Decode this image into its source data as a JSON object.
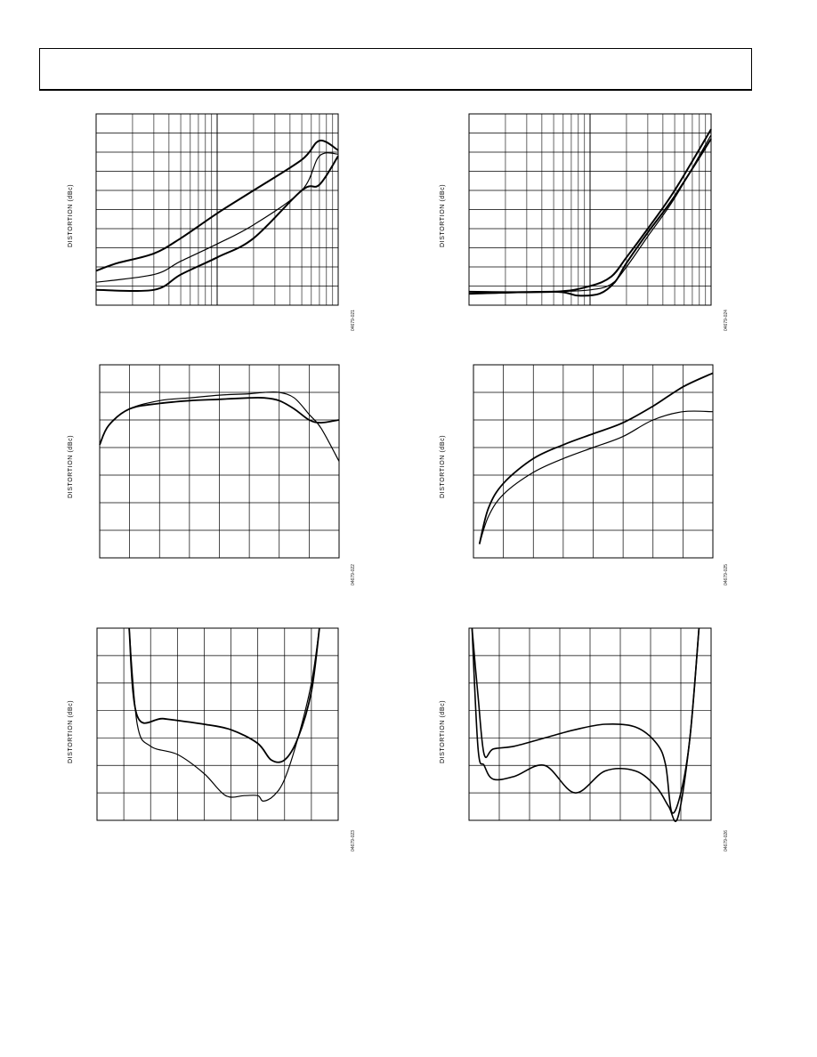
{
  "header": {
    "title": ""
  },
  "figures": [
    {
      "id": "c1",
      "ylabel": "DISTORTION (dBc)",
      "fignum": "04679-021"
    },
    {
      "id": "c2",
      "ylabel": "DISTORTION (dBc)",
      "fignum": "04679-024"
    },
    {
      "id": "c3",
      "ylabel": "DISTORTION (dBc)",
      "fignum": "04679-022"
    },
    {
      "id": "c4",
      "ylabel": "DISTORTION (dBc)",
      "fignum": "04679-025"
    },
    {
      "id": "c5",
      "ylabel": "DISTORTION (dBc)",
      "fignum": "04679-023"
    },
    {
      "id": "c6",
      "ylabel": "DISTORTION (dBc)",
      "fignum": "04679-026"
    }
  ],
  "chart_data": [
    {
      "id": "c1",
      "type": "line",
      "xscale": "log",
      "ylabel": "DISTORTION (dBc)",
      "xlim": [
        1,
        100
      ],
      "ylim": [
        0,
        10
      ],
      "grid": true,
      "series": [
        {
          "x": [
            1,
            1.5,
            3,
            5,
            10,
            20,
            50,
            70,
            100
          ],
          "y": [
            1.8,
            2.2,
            2.7,
            3.5,
            4.8,
            6.0,
            7.6,
            8.6,
            8.1
          ]
        },
        {
          "x": [
            1,
            3,
            5,
            10,
            20,
            50,
            70,
            100
          ],
          "y": [
            1.2,
            1.6,
            2.3,
            3.2,
            4.2,
            6.0,
            7.8,
            7.9
          ]
        },
        {
          "x": [
            1,
            3,
            5,
            10,
            20,
            50,
            70,
            100
          ],
          "y": [
            0.8,
            0.8,
            1.6,
            2.5,
            3.5,
            6.0,
            6.3,
            7.8
          ]
        }
      ]
    },
    {
      "id": "c2",
      "type": "line",
      "xscale": "log",
      "ylabel": "DISTORTION (dBc)",
      "xlim": [
        1,
        100
      ],
      "ylim": [
        0,
        10
      ],
      "grid": true,
      "series": [
        {
          "x": [
            1,
            5,
            10,
            15,
            20,
            30,
            50,
            100
          ],
          "y": [
            0.7,
            0.7,
            1.0,
            1.5,
            2.5,
            4.0,
            6.0,
            9.2
          ]
        },
        {
          "x": [
            1,
            5,
            10,
            15,
            20,
            30,
            50,
            100
          ],
          "y": [
            0.6,
            0.7,
            0.8,
            1.1,
            2.0,
            3.6,
            5.6,
            8.9
          ]
        },
        {
          "x": [
            1,
            5,
            8,
            12,
            16,
            20,
            30,
            50,
            100
          ],
          "y": [
            0.6,
            0.7,
            0.5,
            0.6,
            1.2,
            2.2,
            3.8,
            5.7,
            8.7
          ]
        }
      ]
    },
    {
      "id": "c3",
      "type": "line",
      "ylabel": "DISTORTION (dBc)",
      "xlim": [
        0,
        8
      ],
      "ylim": [
        0,
        7
      ],
      "grid": true,
      "series": [
        {
          "x": [
            0,
            0.3,
            1,
            2,
            3,
            4,
            5,
            5.5,
            6,
            6.5,
            7,
            7.4,
            8
          ],
          "y": [
            4.1,
            4.8,
            5.4,
            5.7,
            5.8,
            5.9,
            5.95,
            6.0,
            6.0,
            5.8,
            5.2,
            4.7,
            3.5
          ]
        },
        {
          "x": [
            0,
            0.3,
            1,
            2,
            3,
            4,
            5,
            5.5,
            6,
            6.5,
            7,
            7.4,
            8
          ],
          "y": [
            4.1,
            4.8,
            5.4,
            5.6,
            5.7,
            5.75,
            5.8,
            5.8,
            5.7,
            5.4,
            5.0,
            4.9,
            5.0
          ]
        }
      ]
    },
    {
      "id": "c4",
      "type": "line",
      "ylabel": "DISTORTION (dBc)",
      "xlim": [
        0,
        8
      ],
      "ylim": [
        0,
        7
      ],
      "grid": true,
      "series": [
        {
          "x": [
            0.2,
            0.5,
            1,
            2,
            3,
            4,
            5,
            6,
            7,
            8
          ],
          "y": [
            0.5,
            1.8,
            2.7,
            3.6,
            4.1,
            4.5,
            4.9,
            5.5,
            6.2,
            6.7
          ]
        },
        {
          "x": [
            0.2,
            0.5,
            1,
            2,
            3,
            4,
            5,
            6,
            7,
            8
          ],
          "y": [
            0.5,
            1.5,
            2.3,
            3.1,
            3.6,
            4.0,
            4.4,
            5.0,
            5.3,
            5.3
          ]
        }
      ]
    },
    {
      "id": "c5",
      "type": "line",
      "ylabel": "DISTORTION (dBc)",
      "xlim": [
        0,
        9
      ],
      "ylim": [
        0,
        7
      ],
      "grid": true,
      "series": [
        {
          "x": [
            1.2,
            1.5,
            2.5,
            4,
            5,
            6,
            6.5,
            7,
            7.5,
            8,
            8.3
          ],
          "y": [
            7.0,
            3.8,
            3.7,
            3.5,
            3.3,
            2.8,
            2.2,
            2.2,
            3.0,
            4.7,
            7.0
          ]
        },
        {
          "x": [
            1.2,
            1.5,
            2,
            3,
            4,
            4.8,
            5.5,
            6,
            6.2,
            6.6,
            7,
            7.5,
            8,
            8.3
          ],
          "y": [
            7.0,
            3.5,
            2.7,
            2.4,
            1.7,
            0.9,
            0.9,
            0.9,
            0.7,
            0.9,
            1.5,
            3.0,
            5.0,
            7.0
          ]
        }
      ]
    },
    {
      "id": "c6",
      "type": "line",
      "ylabel": "DISTORTION (dBc)",
      "xlim": [
        0,
        8
      ],
      "ylim": [
        0,
        7
      ],
      "grid": true,
      "series": [
        {
          "x": [
            0.1,
            0.3,
            0.5,
            0.8,
            1.5,
            2.5,
            3.5,
            4.5,
            5.5,
            6.2,
            6.5,
            6.7,
            7.0,
            7.3,
            7.6
          ],
          "y": [
            7.0,
            4.5,
            2.4,
            2.6,
            2.7,
            3.0,
            3.3,
            3.5,
            3.4,
            2.8,
            2.0,
            0.3,
            1.0,
            3.0,
            7.0
          ]
        },
        {
          "x": [
            0.1,
            0.3,
            0.5,
            0.8,
            1.5,
            2.5,
            3.5,
            4.5,
            5.5,
            6.2,
            6.6,
            6.9,
            7.3,
            7.6
          ],
          "y": [
            7.0,
            2.6,
            2.0,
            1.5,
            1.6,
            2.0,
            1.0,
            1.8,
            1.8,
            1.2,
            0.5,
            0.1,
            3.0,
            7.0
          ]
        }
      ]
    }
  ]
}
